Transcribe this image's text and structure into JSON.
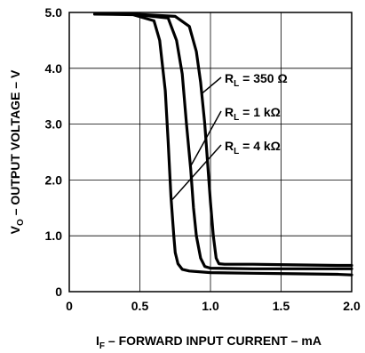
{
  "chart_data": {
    "type": "line",
    "xlabel": {
      "main": "I",
      "sub": "F",
      "rest": " – FORWARD INPUT CURRENT – mA"
    },
    "ylabel": {
      "main": "V",
      "sub": "O",
      "rest": " – OUTPUT VOLTAGE – V"
    },
    "xlim": [
      0,
      2.0
    ],
    "ylim": [
      0,
      5.0
    ],
    "x_ticks": [
      "0",
      "0.5",
      "1.0",
      "1.5",
      "2.0"
    ],
    "y_ticks": [
      "0",
      "1.0",
      "2.0",
      "3.0",
      "4.0",
      "5.0"
    ],
    "grid": true,
    "series": [
      {
        "name": {
          "main": "R",
          "sub": "L",
          "rest": " = 350 Ω"
        },
        "x": [
          0.18,
          0.45,
          0.75,
          0.85,
          0.9,
          0.93,
          0.96,
          0.98,
          1.0,
          1.02,
          1.04,
          1.06,
          1.1,
          1.3,
          1.6,
          1.9,
          2.0
        ],
        "y": [
          4.97,
          4.97,
          4.93,
          4.75,
          4.3,
          3.75,
          3.0,
          2.3,
          1.6,
          1.0,
          0.6,
          0.5,
          0.49,
          0.49,
          0.48,
          0.47,
          0.47
        ]
      },
      {
        "name": {
          "main": "R",
          "sub": "L",
          "rest": " = 1 kΩ"
        },
        "x": [
          0.18,
          0.45,
          0.7,
          0.76,
          0.8,
          0.83,
          0.86,
          0.88,
          0.9,
          0.93,
          0.96,
          1.0,
          1.3,
          1.6,
          1.9,
          2.0
        ],
        "y": [
          4.97,
          4.97,
          4.9,
          4.5,
          3.9,
          3.0,
          2.2,
          1.5,
          1.0,
          0.6,
          0.45,
          0.42,
          0.41,
          0.41,
          0.41,
          0.41
        ]
      },
      {
        "name": {
          "main": "R",
          "sub": "L",
          "rest": " = 4 kΩ"
        },
        "x": [
          0.18,
          0.45,
          0.6,
          0.64,
          0.68,
          0.7,
          0.72,
          0.74,
          0.75,
          0.77,
          0.8,
          0.85,
          1.0,
          1.3,
          1.6,
          1.9,
          2.0
        ],
        "y": [
          4.97,
          4.96,
          4.85,
          4.5,
          3.6,
          2.7,
          1.7,
          1.0,
          0.7,
          0.5,
          0.4,
          0.37,
          0.34,
          0.33,
          0.32,
          0.31,
          0.3
        ]
      }
    ]
  }
}
